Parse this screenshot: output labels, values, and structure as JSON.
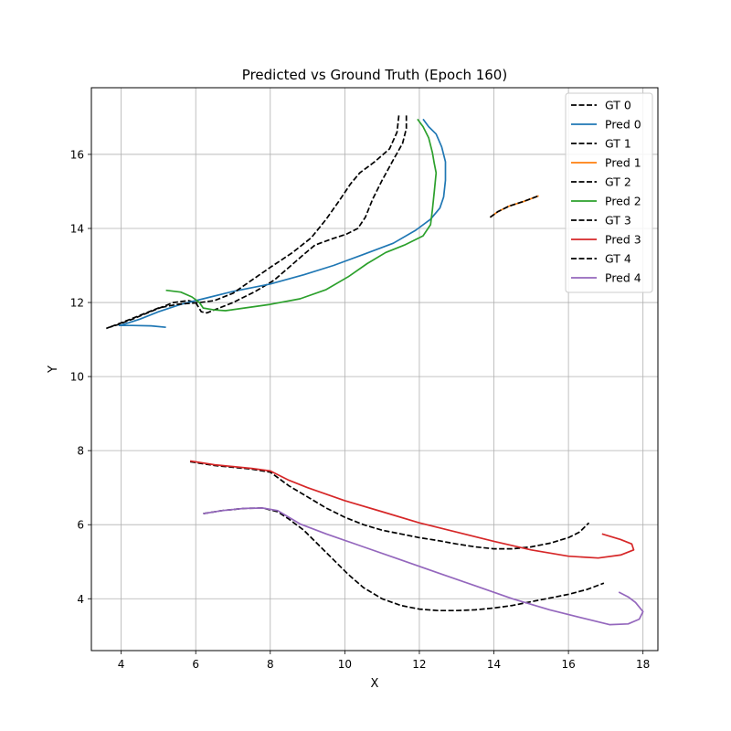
{
  "chart_data": {
    "type": "line",
    "title": "Predicted vs Ground Truth (Epoch 160)",
    "xlabel": "X",
    "ylabel": "Y",
    "xlim": [
      3.2,
      18.4
    ],
    "ylim": [
      2.6,
      17.8
    ],
    "xticks": [
      4,
      6,
      8,
      10,
      12,
      14,
      16,
      18
    ],
    "yticks": [
      4,
      6,
      8,
      10,
      12,
      14,
      16
    ],
    "grid": true,
    "legend_position": "top-right",
    "series": [
      {
        "name": "GT 0",
        "color": "#000000",
        "dashed": true,
        "points": [
          [
            11.65,
            17.05
          ],
          [
            11.65,
            16.7
          ],
          [
            11.55,
            16.3
          ],
          [
            11.3,
            15.85
          ],
          [
            11.0,
            15.3
          ],
          [
            10.75,
            14.8
          ],
          [
            10.55,
            14.3
          ],
          [
            10.35,
            14.0
          ],
          [
            10.05,
            13.85
          ],
          [
            9.6,
            13.7
          ],
          [
            9.2,
            13.55
          ],
          [
            8.9,
            13.3
          ],
          [
            8.5,
            12.95
          ],
          [
            8.1,
            12.6
          ],
          [
            7.6,
            12.3
          ],
          [
            7.0,
            12.0
          ],
          [
            6.5,
            11.8
          ],
          [
            6.3,
            11.72
          ],
          [
            6.15,
            11.75
          ],
          [
            6.0,
            12.0
          ],
          [
            5.8,
            12.05
          ],
          [
            5.4,
            12.0
          ],
          [
            4.9,
            11.8
          ],
          [
            4.3,
            11.55
          ],
          [
            3.9,
            11.4
          ],
          [
            3.65,
            11.32
          ]
        ]
      },
      {
        "name": "Pred 0",
        "color": "#1f77b4",
        "dashed": false,
        "points": [
          [
            12.1,
            16.95
          ],
          [
            12.25,
            16.75
          ],
          [
            12.45,
            16.55
          ],
          [
            12.6,
            16.2
          ],
          [
            12.7,
            15.8
          ],
          [
            12.7,
            15.3
          ],
          [
            12.65,
            14.85
          ],
          [
            12.55,
            14.55
          ],
          [
            12.3,
            14.25
          ],
          [
            11.9,
            13.95
          ],
          [
            11.3,
            13.6
          ],
          [
            10.5,
            13.3
          ],
          [
            9.7,
            13.0
          ],
          [
            8.9,
            12.75
          ],
          [
            8.0,
            12.5
          ],
          [
            7.0,
            12.3
          ],
          [
            6.2,
            12.1
          ],
          [
            5.6,
            11.95
          ],
          [
            5.0,
            11.75
          ],
          [
            4.5,
            11.55
          ],
          [
            4.1,
            11.42
          ],
          [
            3.95,
            11.38
          ],
          [
            4.3,
            11.38
          ],
          [
            4.8,
            11.37
          ],
          [
            5.2,
            11.33
          ]
        ]
      },
      {
        "name": "GT 1",
        "color": "#000000",
        "dashed": true,
        "points": [
          [
            11.45,
            17.05
          ],
          [
            11.4,
            16.6
          ],
          [
            11.2,
            16.15
          ],
          [
            10.8,
            15.8
          ],
          [
            10.4,
            15.5
          ],
          [
            10.15,
            15.2
          ],
          [
            9.85,
            14.75
          ],
          [
            9.5,
            14.25
          ],
          [
            9.1,
            13.75
          ],
          [
            8.6,
            13.35
          ],
          [
            8.0,
            12.95
          ],
          [
            7.5,
            12.6
          ],
          [
            7.0,
            12.25
          ],
          [
            6.5,
            12.05
          ],
          [
            6.1,
            12.0
          ],
          [
            5.5,
            11.95
          ],
          [
            5.0,
            11.85
          ],
          [
            4.5,
            11.65
          ],
          [
            4.0,
            11.45
          ],
          [
            3.6,
            11.3
          ]
        ]
      },
      {
        "name": "Pred 1",
        "color": "#ff7f0e",
        "dashed": false,
        "points": [
          [
            13.9,
            14.3
          ],
          [
            14.1,
            14.45
          ],
          [
            14.4,
            14.6
          ],
          [
            14.8,
            14.73
          ],
          [
            15.2,
            14.88
          ]
        ]
      },
      {
        "name": "GT 2",
        "color": "#000000",
        "dashed": true,
        "points": [
          [
            13.9,
            14.3
          ],
          [
            14.1,
            14.45
          ],
          [
            14.4,
            14.6
          ],
          [
            14.8,
            14.73
          ],
          [
            15.2,
            14.88
          ]
        ]
      },
      {
        "name": "Pred 2",
        "color": "#2ca02c",
        "dashed": false,
        "points": [
          [
            11.95,
            16.95
          ],
          [
            12.1,
            16.75
          ],
          [
            12.25,
            16.45
          ],
          [
            12.35,
            16.05
          ],
          [
            12.4,
            15.75
          ],
          [
            12.45,
            15.5
          ],
          [
            12.4,
            15.0
          ],
          [
            12.35,
            14.5
          ],
          [
            12.3,
            14.1
          ],
          [
            12.1,
            13.8
          ],
          [
            11.6,
            13.55
          ],
          [
            11.1,
            13.35
          ],
          [
            10.6,
            13.05
          ],
          [
            10.1,
            12.7
          ],
          [
            9.5,
            12.35
          ],
          [
            8.8,
            12.1
          ],
          [
            8.0,
            11.95
          ],
          [
            7.3,
            11.85
          ],
          [
            6.8,
            11.78
          ],
          [
            6.5,
            11.8
          ],
          [
            6.2,
            11.85
          ],
          [
            6.1,
            12.0
          ],
          [
            5.9,
            12.15
          ],
          [
            5.6,
            12.28
          ],
          [
            5.2,
            12.33
          ]
        ]
      },
      {
        "name": "GT 3",
        "color": "#000000",
        "dashed": true,
        "points": [
          [
            5.85,
            7.7
          ],
          [
            6.5,
            7.6
          ],
          [
            7.5,
            7.5
          ],
          [
            8.0,
            7.42
          ],
          [
            8.5,
            7.05
          ],
          [
            9.0,
            6.75
          ],
          [
            9.5,
            6.45
          ],
          [
            10.0,
            6.2
          ],
          [
            10.5,
            6.0
          ],
          [
            11.0,
            5.85
          ],
          [
            11.5,
            5.75
          ],
          [
            12.0,
            5.65
          ],
          [
            12.5,
            5.57
          ],
          [
            13.0,
            5.48
          ],
          [
            13.5,
            5.4
          ],
          [
            14.0,
            5.35
          ],
          [
            14.5,
            5.35
          ],
          [
            15.0,
            5.4
          ],
          [
            15.5,
            5.5
          ],
          [
            16.0,
            5.65
          ],
          [
            16.3,
            5.8
          ],
          [
            16.55,
            6.05
          ]
        ]
      },
      {
        "name": "Pred 3",
        "color": "#d62728",
        "dashed": false,
        "points": [
          [
            5.85,
            7.72
          ],
          [
            6.5,
            7.62
          ],
          [
            7.5,
            7.52
          ],
          [
            8.0,
            7.45
          ],
          [
            8.5,
            7.2
          ],
          [
            9.0,
            7.0
          ],
          [
            10.0,
            6.65
          ],
          [
            11.0,
            6.35
          ],
          [
            12.0,
            6.05
          ],
          [
            13.0,
            5.8
          ],
          [
            14.0,
            5.55
          ],
          [
            15.0,
            5.32
          ],
          [
            16.0,
            5.15
          ],
          [
            16.8,
            5.1
          ],
          [
            17.4,
            5.18
          ],
          [
            17.75,
            5.32
          ],
          [
            17.7,
            5.48
          ],
          [
            17.4,
            5.6
          ],
          [
            16.9,
            5.75
          ]
        ]
      },
      {
        "name": "GT 4",
        "color": "#000000",
        "dashed": true,
        "points": [
          [
            6.2,
            6.3
          ],
          [
            6.7,
            6.38
          ],
          [
            7.3,
            6.44
          ],
          [
            7.8,
            6.45
          ],
          [
            8.2,
            6.35
          ],
          [
            8.5,
            6.15
          ],
          [
            8.9,
            5.85
          ],
          [
            9.3,
            5.45
          ],
          [
            9.7,
            5.05
          ],
          [
            10.1,
            4.65
          ],
          [
            10.5,
            4.3
          ],
          [
            11.0,
            4.0
          ],
          [
            11.5,
            3.82
          ],
          [
            12.0,
            3.72
          ],
          [
            12.5,
            3.68
          ],
          [
            13.0,
            3.68
          ],
          [
            13.5,
            3.7
          ],
          [
            14.0,
            3.75
          ],
          [
            14.5,
            3.82
          ],
          [
            15.0,
            3.92
          ],
          [
            15.5,
            4.02
          ],
          [
            16.0,
            4.12
          ],
          [
            16.5,
            4.25
          ],
          [
            16.95,
            4.42
          ]
        ]
      },
      {
        "name": "Pred 4",
        "color": "#9467bd",
        "dashed": false,
        "points": [
          [
            6.2,
            6.3
          ],
          [
            6.7,
            6.38
          ],
          [
            7.3,
            6.44
          ],
          [
            7.8,
            6.45
          ],
          [
            8.2,
            6.38
          ],
          [
            8.5,
            6.2
          ],
          [
            8.8,
            6.02
          ],
          [
            9.5,
            5.75
          ],
          [
            10.5,
            5.4
          ],
          [
            11.5,
            5.05
          ],
          [
            12.5,
            4.7
          ],
          [
            13.5,
            4.35
          ],
          [
            14.5,
            4.0
          ],
          [
            15.5,
            3.7
          ],
          [
            16.5,
            3.45
          ],
          [
            17.1,
            3.3
          ],
          [
            17.6,
            3.32
          ],
          [
            17.9,
            3.45
          ],
          [
            18.0,
            3.65
          ],
          [
            17.8,
            3.9
          ],
          [
            17.6,
            4.05
          ],
          [
            17.35,
            4.18
          ]
        ]
      }
    ]
  }
}
